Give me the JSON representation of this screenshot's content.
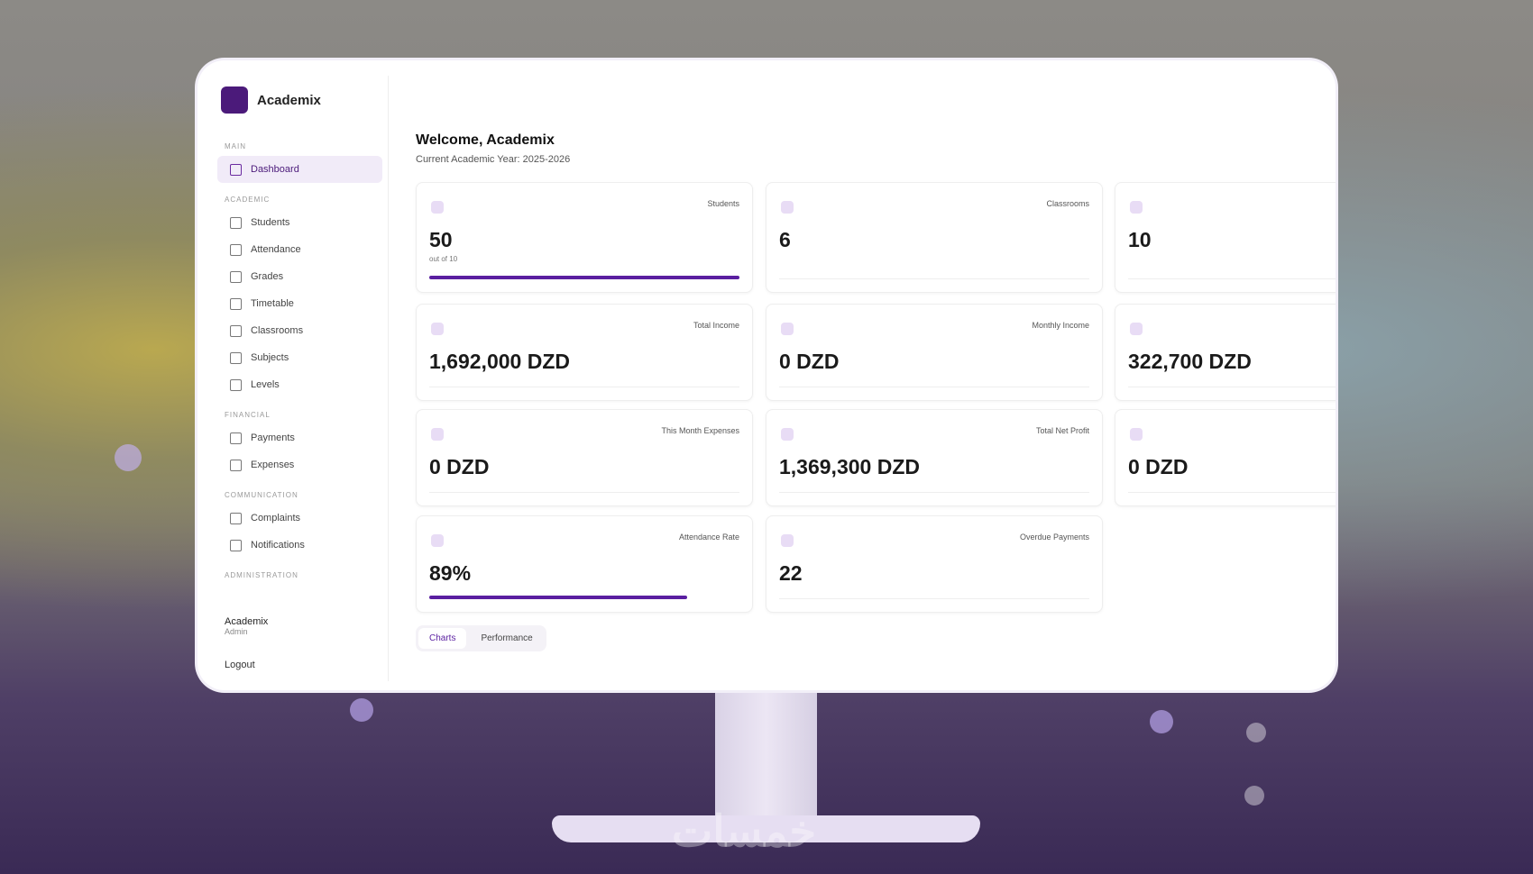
{
  "sidebar": {
    "brand": "Academix",
    "sections": [
      {
        "label": "MAIN",
        "items": [
          "Dashboard"
        ]
      },
      {
        "label": "ACADEMIC",
        "items": [
          "Students",
          "Attendance",
          "Grades",
          "Timetable",
          "Classrooms",
          "Subjects",
          "Levels"
        ]
      },
      {
        "label": "FINANCIAL",
        "items": [
          "Payments",
          "Expenses"
        ]
      },
      {
        "label": "COMMUNICATION",
        "items": [
          "Complaints",
          "Notifications"
        ]
      },
      {
        "label": "ADMINISTRATION",
        "items": []
      }
    ],
    "user": {
      "name": "Academix",
      "role": "Admin"
    },
    "logout": "Logout"
  },
  "header": {
    "title": "Welcome, Academix",
    "subtitle": "Current Academic Year: 2025-2026"
  },
  "cards": [
    {
      "label": "Students",
      "value": "50",
      "note": "out of 10"
    },
    {
      "label": "Classrooms",
      "value": "6"
    },
    {
      "value": "10"
    },
    {
      "label": "Total Income",
      "value": "1,692,000 DZD"
    },
    {
      "label": "Monthly Income",
      "value": "0 DZD"
    },
    {
      "value": "322,700 DZD"
    },
    {
      "label": "This Month Expenses",
      "value": "0 DZD"
    },
    {
      "label": "Total Net Profit",
      "value": "1,369,300 DZD"
    },
    {
      "value": "0 DZD"
    },
    {
      "label": "Attendance Rate",
      "value": "89%"
    },
    {
      "label": "Overdue Payments",
      "value": "22"
    }
  ],
  "tabs": [
    "Charts",
    "Performance"
  ],
  "watermark": "خمسات"
}
